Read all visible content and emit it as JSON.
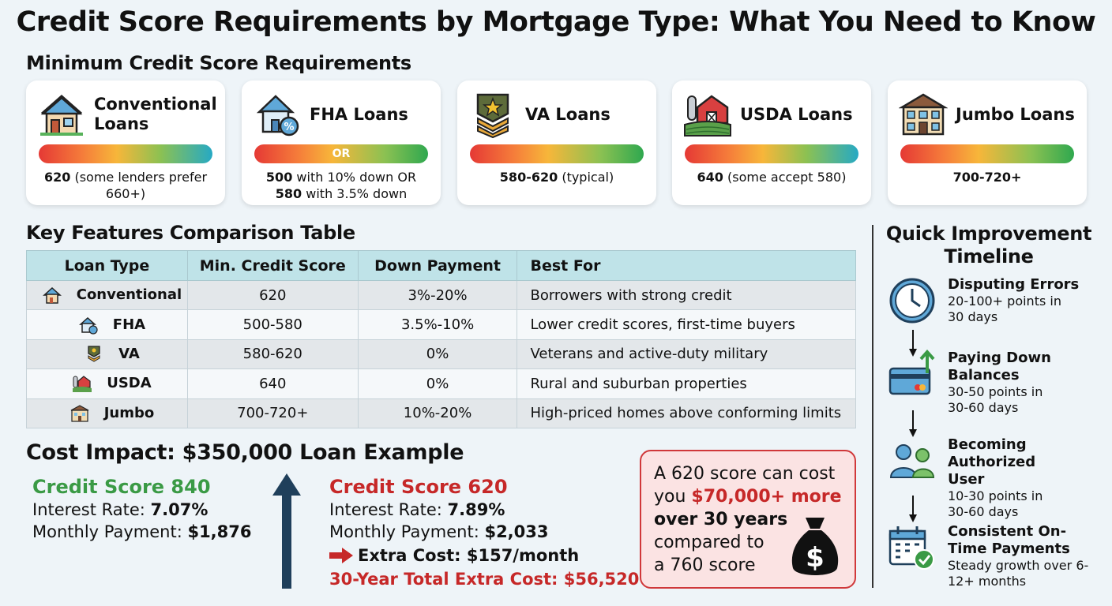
{
  "title": "Credit Score Requirements by Mortgage Type: What You Need to Know",
  "min_section": {
    "heading": "Minimum Credit Score Requirements",
    "cards": [
      {
        "name": "Conventional Loans",
        "icon": "house-icon",
        "bar_label": "",
        "req_bold": "620",
        "req_rest": " (some lenders prefer 660+)",
        "req_bold2": "",
        "req_rest2": ""
      },
      {
        "name": "FHA Loans",
        "icon": "house-percent-icon",
        "bar_label": "OR",
        "req_bold": "500",
        "req_rest": " with 10% down OR",
        "req_bold2": "580",
        "req_rest2": " with 3.5% down"
      },
      {
        "name": "VA Loans",
        "icon": "military-badge-icon",
        "bar_label": "",
        "req_bold": "580-620",
        "req_rest": " (typical)",
        "req_bold2": "",
        "req_rest2": ""
      },
      {
        "name": "USDA Loans",
        "icon": "barn-icon",
        "bar_label": "",
        "req_bold": "640",
        "req_rest": " (some accept 580)",
        "req_bold2": "",
        "req_rest2": ""
      },
      {
        "name": "Jumbo Loans",
        "icon": "mansion-icon",
        "bar_label": "",
        "req_bold": "700-720+",
        "req_rest": "",
        "req_bold2": "",
        "req_rest2": ""
      }
    ]
  },
  "table": {
    "heading": "Key Features Comparison Table",
    "columns": [
      "Loan Type",
      "Min. Credit Score",
      "Down Payment",
      "Best For"
    ],
    "rows": [
      {
        "type": "Conventional",
        "score": "620",
        "down": "3%-20%",
        "best": "Borrowers with strong credit"
      },
      {
        "type": "FHA",
        "score": "500-580",
        "down": "3.5%-10%",
        "best": "Lower credit scores, first-time buyers"
      },
      {
        "type": "VA",
        "score": "580-620",
        "down": "0%",
        "best": "Veterans and active-duty military"
      },
      {
        "type": "USDA",
        "score": "640",
        "down": "0%",
        "best": "Rural and suburban properties"
      },
      {
        "type": "Jumbo",
        "score": "700-720+",
        "down": "10%-20%",
        "best": "High-priced homes above conforming limits"
      }
    ]
  },
  "cost": {
    "heading": "Cost Impact: $350,000 Loan Example",
    "high": {
      "title": "Credit Score 840",
      "rate_label": "Interest Rate: ",
      "rate": "7.07%",
      "pay_label": "Monthly Payment: ",
      "pay": "$1,876"
    },
    "low": {
      "title": "Credit Score 620",
      "rate_label": "Interest Rate: ",
      "rate": "7.89%",
      "pay_label": "Monthly Payment: ",
      "pay": "$2,033",
      "extra": "Extra Cost: $157/month",
      "total": "30-Year Total Extra Cost: $56,520"
    },
    "callout": {
      "p1": "A 620 score can cost you ",
      "highlight": "$70,000+ more",
      "bold": "over 30 years",
      "p2": "compared to a 760 score"
    }
  },
  "timeline": {
    "heading": "Quick Improvement Timeline",
    "steps": [
      {
        "title": "Disputing Errors",
        "desc": "20-100+ points in 30 days",
        "icon": "clock-icon"
      },
      {
        "title": "Paying Down Balances",
        "desc": "30-50 points in 30-60 days",
        "icon": "credit-card-icon"
      },
      {
        "title": "Becoming Authorized User",
        "desc": "10-30 points in 30-60 days",
        "icon": "users-icon"
      },
      {
        "title": "Consistent On-Time Payments",
        "desc": "Steady growth over 6-12+ months",
        "icon": "calendar-check-icon"
      }
    ]
  },
  "colors": {
    "green": "#3a9a45",
    "red": "#c62828",
    "navy": "#1f3f5b",
    "header": "#bfe3e8"
  }
}
